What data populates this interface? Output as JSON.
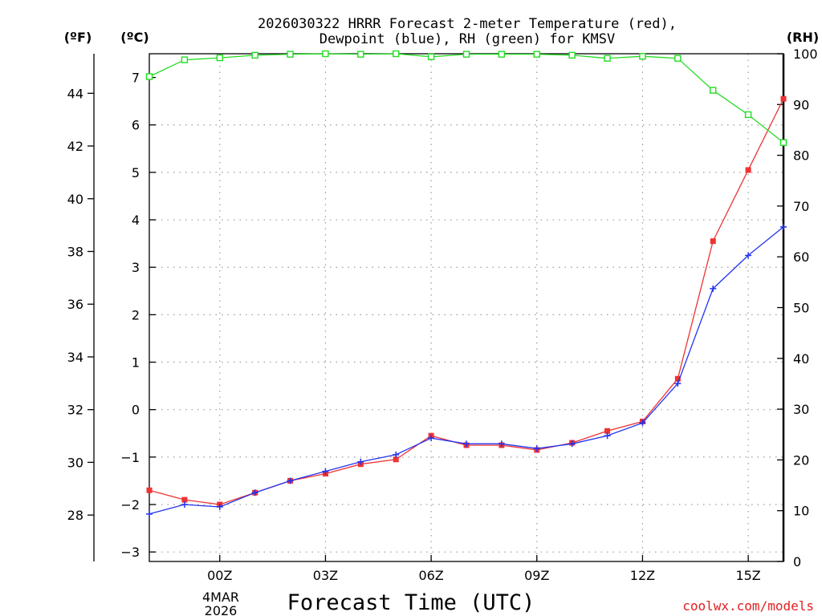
{
  "chart_data": {
    "type": "line",
    "title": [
      "2026030322 HRRR Forecast 2-meter Temperature (red),",
      "Dewpoint (blue), RH (green) for KMSV"
    ],
    "xlabel": "Forecast Time (UTC)",
    "x_forecast_hour": [
      -2,
      -1,
      0,
      1,
      2,
      3,
      4,
      5,
      6,
      7,
      8,
      9,
      10,
      11,
      12,
      13,
      14,
      15,
      16
    ],
    "xlim": [
      -2,
      16
    ],
    "x_ticks": [
      {
        "hour": 0,
        "label": "00Z"
      },
      {
        "hour": 3,
        "label": "03Z"
      },
      {
        "hour": 6,
        "label": "06Z"
      },
      {
        "hour": 9,
        "label": "09Z"
      },
      {
        "hour": 12,
        "label": "12Z"
      },
      {
        "hour": 15,
        "label": "15Z"
      }
    ],
    "date_label": [
      "4MAR",
      "2026"
    ],
    "y_celsius": {
      "unit_label": "(ºC)",
      "range": [
        -3.2,
        7.5
      ],
      "ticks": [
        -3,
        -2,
        -1,
        0,
        1,
        2,
        3,
        4,
        5,
        6,
        7
      ]
    },
    "y_fahrenheit": {
      "unit_label": "(ºF)",
      "ticks": [
        28,
        30,
        32,
        34,
        36,
        38,
        40,
        42,
        44
      ]
    },
    "y_rh": {
      "unit_label": "(RH)",
      "range": [
        0,
        100
      ],
      "ticks": [
        0,
        10,
        20,
        30,
        40,
        50,
        60,
        70,
        80,
        90,
        100
      ]
    },
    "series": [
      {
        "name": "Temperature",
        "color": "#ee3333",
        "marker": "filled-square",
        "axis": "celsius",
        "values": [
          -1.7,
          -1.9,
          -2.0,
          -1.75,
          -1.5,
          -1.35,
          -1.15,
          -1.05,
          -0.55,
          -0.75,
          -0.75,
          -0.85,
          -0.7,
          -0.45,
          -0.25,
          0.65,
          3.55,
          5.05,
          6.55
        ]
      },
      {
        "name": "Dewpoint",
        "color": "#2233ee",
        "marker": "plus",
        "axis": "celsius",
        "values": [
          -2.2,
          -2.0,
          -2.05,
          -1.75,
          -1.5,
          -1.3,
          -1.1,
          -0.95,
          -0.6,
          -0.72,
          -0.72,
          -0.82,
          -0.72,
          -0.55,
          -0.28,
          0.55,
          2.55,
          3.25,
          3.85
        ]
      },
      {
        "name": "RH",
        "color": "#22dd22",
        "marker": "open-square",
        "axis": "rh",
        "values": [
          95.5,
          98.8,
          99.2,
          99.7,
          99.9,
          100,
          99.9,
          100,
          99.4,
          99.9,
          99.9,
          99.9,
          99.7,
          99.1,
          99.5,
          99.1,
          92.8,
          88.0,
          82.5
        ]
      }
    ],
    "grid": true,
    "credit": "coolwx.com/models"
  }
}
